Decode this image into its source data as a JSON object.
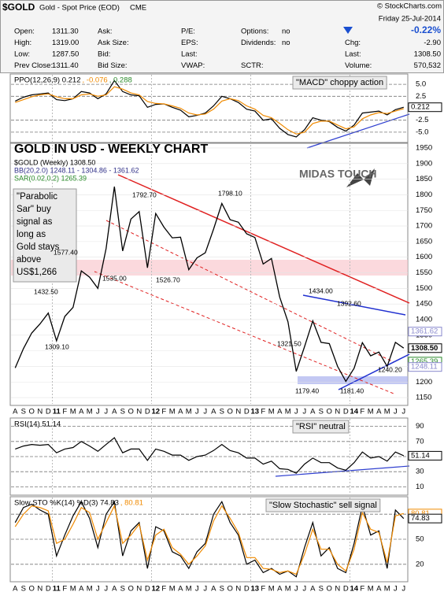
{
  "header": {
    "symbol": "$GOLD",
    "name": "Gold - Spot Price (EOD)",
    "exchange": "CME",
    "copyright": "© StockCharts.com",
    "date": "Friday 25-Jul-2014",
    "change_pct": "-0.22%",
    "rows": [
      [
        {
          "label": "Open:",
          "value": "1311.30"
        },
        {
          "label": "Ask:"
        },
        {
          "label": "P/E:"
        },
        {
          "label": "Options:",
          "value": "no"
        }
      ],
      [
        {
          "label": "High:",
          "value": "1319.00"
        },
        {
          "label": "Ask Size:"
        },
        {
          "label": "EPS:"
        },
        {
          "label": "Dividends:",
          "value": "no"
        }
      ],
      [
        {
          "label": "Low:",
          "value": "1287.50"
        },
        {
          "label": "Bid:"
        },
        {
          "label": "Last:"
        }
      ],
      [
        {
          "label": "Prev Close:",
          "value": "1311.40"
        },
        {
          "label": "Bid Size:"
        },
        {
          "label": "VWAP:"
        },
        {
          "label": "SCTR:"
        }
      ]
    ],
    "right": [
      {
        "label": "Chg:",
        "value": "-2.90"
      },
      {
        "label": "Last:",
        "value": "1308.50"
      },
      {
        "label": "Volume:",
        "value": "570,532"
      }
    ]
  },
  "chart_data": [
    {
      "type": "line",
      "legend": [
        "PPO(12,26,9) 0.212",
        ", -0.076",
        ", 0.288"
      ],
      "annotation": "\"MACD\" choppy action",
      "categories": [
        "A",
        "S",
        "O",
        "N",
        "D",
        "11",
        "F",
        "M",
        "A",
        "M",
        "J",
        "J",
        "A",
        "S",
        "O",
        "N",
        "D",
        "12",
        "F",
        "M",
        "A",
        "M",
        "J",
        "J",
        "A",
        "S",
        "O",
        "N",
        "D",
        "13",
        "F",
        "M",
        "A",
        "M",
        "J",
        "J",
        "A",
        "S",
        "O",
        "N",
        "D",
        "14",
        "F",
        "M",
        "A",
        "M",
        "J",
        "J"
      ],
      "ylim": [
        -7,
        7
      ],
      "yticks": [
        {
          "value": 5,
          "label": "5.0"
        },
        {
          "value": 2.5,
          "label": "2.5"
        },
        {
          "value": -2.5,
          "label": "-2.5"
        },
        {
          "value": -5,
          "label": "-5.0"
        }
      ],
      "grid": true,
      "series": [
        {
          "name": "PPO",
          "color": "#000000",
          "values": [
            1.5,
            2.3,
            2.8,
            3.0,
            3.2,
            1.8,
            1.6,
            2.0,
            3.5,
            3.2,
            2.0,
            3.0,
            5.8,
            3.5,
            2.8,
            2.6,
            0.2,
            0.8,
            0.9,
            0.2,
            -0.4,
            -1.8,
            -1.5,
            -1.0,
            0.5,
            2.5,
            2.0,
            1.2,
            -0.2,
            -0.6,
            -2.5,
            -2.2,
            -4.2,
            -5.5,
            -6.0,
            -4.5,
            -2.0,
            -2.5,
            -2.8,
            -4.0,
            -4.8,
            -3.5,
            -1.0,
            -0.8,
            -0.6,
            -1.4,
            -0.3,
            0.212
          ]
        },
        {
          "name": "Signal",
          "color": "#f08a00",
          "values": [
            1.2,
            1.8,
            2.4,
            2.8,
            3.0,
            2.4,
            2.0,
            2.0,
            2.8,
            3.0,
            2.5,
            2.8,
            4.5,
            4.0,
            3.2,
            2.8,
            1.4,
            1.0,
            0.9,
            0.5,
            0.0,
            -1.0,
            -1.4,
            -1.2,
            -0.2,
            1.5,
            2.0,
            1.6,
            0.5,
            -0.2,
            -1.5,
            -2.0,
            -3.2,
            -4.5,
            -5.4,
            -5.0,
            -3.2,
            -2.7,
            -2.7,
            -3.5,
            -4.3,
            -3.9,
            -2.2,
            -1.4,
            -0.9,
            -1.1,
            -0.6,
            -0.076
          ]
        }
      ],
      "value_tags": [
        {
          "value": 0.212,
          "label": "0.212",
          "color": "#000000"
        }
      ]
    },
    {
      "type": "line",
      "title": "GOLD IN USD - WEEKLY CHART",
      "legend": [
        "$GOLD (Weekly) 1308.50",
        "BB(20,2.0) 1248.11 - 1304.86 - 1361.62",
        "SAR(0.02,0.2) 1265.39"
      ],
      "logo": "MIDAS TOUCH",
      "note": [
        "\"Parabolic",
        "Sar\" buy",
        "signal as",
        "long as",
        "Gold stays",
        "above",
        "US$1,266"
      ],
      "annotations": [
        "1792.70",
        "1798.10",
        "1577.40",
        "1432.50",
        "1309.10",
        "1535.00",
        "1526.70",
        "1434.00",
        "1392.60",
        "1321.50",
        "1179.40",
        "1181.40",
        "1240.20"
      ],
      "categories": [
        "A",
        "S",
        "O",
        "N",
        "D",
        "11",
        "F",
        "M",
        "A",
        "M",
        "J",
        "J",
        "A",
        "S",
        "O",
        "N",
        "D",
        "12",
        "F",
        "M",
        "A",
        "M",
        "J",
        "J",
        "A",
        "S",
        "O",
        "N",
        "D",
        "13",
        "F",
        "M",
        "A",
        "M",
        "J",
        "J",
        "A",
        "S",
        "O",
        "N",
        "D",
        "14",
        "F",
        "M",
        "A",
        "M",
        "J",
        "J"
      ],
      "ylim": [
        1130,
        1960
      ],
      "yticks": [
        1150,
        1200,
        1250,
        1300,
        1350,
        1400,
        1450,
        1500,
        1550,
        1600,
        1650,
        1700,
        1750,
        1800,
        1850,
        1900,
        1950
      ],
      "grid": true,
      "series": [
        {
          "name": "$GOLD",
          "color": "#000000",
          "values": [
            1245,
            1307,
            1357,
            1386,
            1421,
            1332,
            1410,
            1439,
            1556,
            1536,
            1500,
            1628,
            1826,
            1620,
            1722,
            1746,
            1566,
            1740,
            1696,
            1662,
            1664,
            1560,
            1598,
            1614,
            1690,
            1772,
            1720,
            1712,
            1675,
            1663,
            1578,
            1596,
            1472,
            1393,
            1234,
            1313,
            1396,
            1327,
            1323,
            1250,
            1202,
            1244,
            1326,
            1284,
            1296,
            1250,
            1327,
            1308.5
          ]
        }
      ],
      "value_tags": [
        {
          "value": 1361.62,
          "label": "1361.62",
          "color": "#8888cc"
        },
        {
          "value": 1308.5,
          "label": "1308.50",
          "color": "#000000"
        },
        {
          "value": 1265.39,
          "label": "1265.39",
          "color": "#2a8a2a"
        },
        {
          "value": 1248.11,
          "label": "1248.11",
          "color": "#8888cc"
        }
      ]
    },
    {
      "type": "line",
      "legend": [
        "RSI(14) 51.14"
      ],
      "annotation": "\"RSI\" neutral",
      "categories": [
        "A",
        "S",
        "O",
        "N",
        "D",
        "11",
        "F",
        "M",
        "A",
        "M",
        "J",
        "J",
        "A",
        "S",
        "O",
        "N",
        "D",
        "12",
        "F",
        "M",
        "A",
        "M",
        "J",
        "J",
        "A",
        "S",
        "O",
        "N",
        "D",
        "13",
        "F",
        "M",
        "A",
        "M",
        "J",
        "J",
        "A",
        "S",
        "O",
        "N",
        "D",
        "14",
        "F",
        "M",
        "A",
        "M",
        "J",
        "J"
      ],
      "ylim": [
        0,
        100
      ],
      "yticks": [
        10,
        30,
        50,
        70,
        90
      ],
      "grid": true,
      "series": [
        {
          "name": "RSI",
          "color": "#000000",
          "values": [
            60,
            64,
            66,
            65,
            66,
            55,
            60,
            62,
            70,
            64,
            57,
            66,
            75,
            55,
            60,
            60,
            45,
            60,
            57,
            52,
            52,
            45,
            50,
            52,
            58,
            66,
            58,
            55,
            48,
            48,
            40,
            44,
            34,
            33,
            28,
            40,
            48,
            42,
            42,
            35,
            32,
            42,
            56,
            48,
            50,
            44,
            56,
            51.14
          ]
        }
      ],
      "value_tags": [
        {
          "value": 51.14,
          "label": "51.14",
          "color": "#000000"
        }
      ]
    },
    {
      "type": "line",
      "legend": [
        "Slow STO %K(14) %D(3) 74.83",
        ", 80.81"
      ],
      "annotation": "\"Slow Stochastic\" sell signal",
      "categories": [
        "A",
        "S",
        "O",
        "N",
        "D",
        "11",
        "F",
        "M",
        "A",
        "M",
        "J",
        "J",
        "A",
        "S",
        "O",
        "N",
        "D",
        "12",
        "F",
        "M",
        "A",
        "M",
        "J",
        "J",
        "A",
        "S",
        "O",
        "N",
        "D",
        "13",
        "F",
        "M",
        "A",
        "M",
        "J",
        "J",
        "A",
        "S",
        "O",
        "N",
        "D",
        "14",
        "F",
        "M",
        "A",
        "M",
        "J",
        "J"
      ],
      "ylim": [
        0,
        100
      ],
      "yticks": [
        20,
        50,
        80
      ],
      "grid": true,
      "series": [
        {
          "name": "%K",
          "color": "#000000",
          "values": [
            70,
            88,
            92,
            85,
            80,
            30,
            55,
            78,
            95,
            75,
            40,
            80,
            95,
            30,
            60,
            70,
            15,
            65,
            60,
            35,
            30,
            15,
            35,
            45,
            80,
            95,
            70,
            55,
            20,
            25,
            10,
            15,
            8,
            12,
            5,
            40,
            70,
            30,
            40,
            15,
            10,
            45,
            90,
            55,
            60,
            15,
            85,
            74.83
          ]
        },
        {
          "name": "%D",
          "color": "#f08a00",
          "values": [
            65,
            80,
            90,
            88,
            84,
            45,
            50,
            68,
            88,
            82,
            50,
            70,
            90,
            45,
            55,
            68,
            25,
            55,
            62,
            40,
            32,
            20,
            30,
            42,
            72,
            90,
            75,
            58,
            28,
            28,
            15,
            14,
            10,
            12,
            8,
            32,
            62,
            38,
            38,
            20,
            12,
            38,
            82,
            62,
            58,
            22,
            78,
            80.81
          ]
        }
      ],
      "value_tags": [
        {
          "value": 80.81,
          "label": "80.81",
          "color": "#f08a00"
        },
        {
          "value": 74.83,
          "label": "74.83",
          "color": "#000000"
        }
      ]
    }
  ]
}
